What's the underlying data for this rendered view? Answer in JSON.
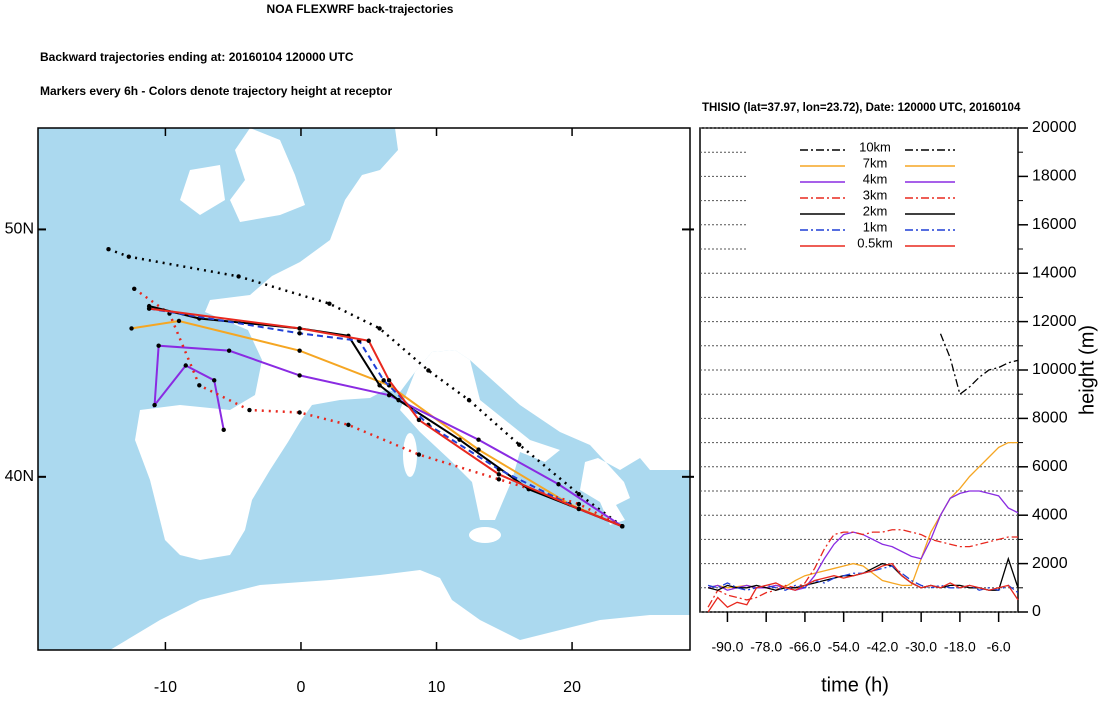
{
  "header": {
    "title": "NOA FLEXWRF back-trajectories",
    "line1": "Backward trajectories ending at: 20160104  120000 UTC",
    "line2": "Markers every 6h - Colors denote trajectory height at receptor"
  },
  "chart_data": [
    {
      "type": "map",
      "xlim": [
        -19.4,
        28.7
      ],
      "ylim": [
        33.0,
        54.1
      ],
      "xticks": [
        -10,
        0,
        10,
        20
      ],
      "yticks": [
        {
          "value": 40,
          "label": "40N"
        },
        {
          "value": 50,
          "label": "50N"
        }
      ],
      "series": [
        {
          "color": "#000000",
          "linestyle": "dotted",
          "x": [
            -14.2,
            -12.7,
            -4.6,
            2.1,
            5.8,
            9.4,
            12.4,
            16.1,
            20.5,
            23.7
          ],
          "values": [
            49.2,
            48.9,
            48.1,
            47.0,
            46.0,
            44.3,
            43.1,
            41.3,
            39.3,
            38.0
          ]
        },
        {
          "color": "#f5a623",
          "linestyle": "solid",
          "x": [
            -12.5,
            -9.0,
            -0.1,
            6.5,
            13.1,
            19.8,
            23.7
          ],
          "values": [
            46.0,
            46.3,
            45.1,
            43.7,
            41.1,
            38.9,
            38.0
          ]
        },
        {
          "color": "#8a2be2",
          "linestyle": "solid",
          "x": [
            -5.7,
            -6.4,
            -8.5,
            -10.8,
            -10.5,
            -5.3,
            -0.1,
            6.5,
            13.1,
            19.0,
            23.7
          ],
          "values": [
            41.9,
            43.9,
            44.5,
            42.9,
            45.3,
            45.1,
            44.1,
            43.3,
            41.5,
            39.7,
            38.0
          ]
        },
        {
          "color": "#e8281e",
          "linestyle": "dotted",
          "x": [
            -12.3,
            -9.7,
            -7.5,
            -3.8,
            -0.1,
            3.5,
            8.7,
            14.6,
            20.5,
            23.7
          ],
          "values": [
            47.6,
            46.6,
            43.7,
            42.7,
            42.6,
            42.1,
            40.9,
            39.9,
            38.9,
            38.0
          ]
        },
        {
          "color": "#000000",
          "linestyle": "solid",
          "x": [
            -11.2,
            -7.5,
            -0.1,
            3.5,
            5.8,
            7.2,
            11.7,
            16.8,
            20.5,
            23.7
          ],
          "values": [
            46.9,
            46.4,
            46.0,
            45.7,
            43.7,
            43.1,
            41.5,
            39.5,
            38.7,
            38.0
          ]
        },
        {
          "color": "#1f3fd6",
          "linestyle": "dashed",
          "x": [
            -11.2,
            -0.1,
            4.3,
            6.1,
            9.4,
            14.6,
            20.5,
            23.7
          ],
          "values": [
            46.8,
            45.8,
            45.5,
            43.9,
            42.1,
            40.3,
            38.7,
            38.0
          ]
        },
        {
          "color": "#e8281e",
          "linestyle": "solid",
          "x": [
            -11.2,
            -0.1,
            5.0,
            6.5,
            8.7,
            14.6,
            20.5,
            23.7
          ],
          "values": [
            46.8,
            46.0,
            45.5,
            43.9,
            42.3,
            40.1,
            38.7,
            38.0
          ]
        }
      ]
    },
    {
      "type": "line",
      "title": "THISIO (lat=37.97,  lon=23.72), Date: 120000 UTC, 20160104",
      "xlabel": "time (h)",
      "ylabel": "height (m)",
      "xlim": [
        -98.5,
        0
      ],
      "ylim": [
        0,
        20000
      ],
      "xticks": [
        {
          "value": -90,
          "label": "-90.0"
        },
        {
          "value": -78,
          "label": "-78.0"
        },
        {
          "value": -66,
          "label": "-66.0"
        },
        {
          "value": -54,
          "label": "-54.0"
        },
        {
          "value": -42,
          "label": "-42.0"
        },
        {
          "value": -30,
          "label": "-30.0"
        },
        {
          "value": -18,
          "label": "-18.0"
        },
        {
          "value": -6,
          "label": "-6.0"
        }
      ],
      "yticks": [
        0,
        2000,
        4000,
        6000,
        8000,
        10000,
        12000,
        14000,
        16000,
        18000,
        20000
      ],
      "yminorticks": [
        1000,
        3000,
        5000,
        7000,
        9000,
        11000,
        13000,
        15000,
        17000,
        19000
      ],
      "grid": true,
      "x": [
        -96,
        -93,
        -90,
        -87,
        -84,
        -81,
        -78,
        -75,
        -72,
        -69,
        -66,
        -63,
        -60,
        -57,
        -54,
        -51,
        -48,
        -45,
        -42,
        -39,
        -36,
        -33,
        -30,
        -27,
        -24,
        -21,
        -18,
        -15,
        -12,
        -9,
        -6,
        -3,
        0
      ],
      "series": [
        {
          "name": "10km",
          "color": "#000000",
          "linestyle": "dashdot",
          "values": [
            null,
            null,
            null,
            null,
            null,
            null,
            null,
            null,
            null,
            null,
            null,
            null,
            null,
            null,
            null,
            null,
            null,
            null,
            null,
            null,
            null,
            null,
            null,
            null,
            11500,
            10500,
            9000,
            9300,
            9700,
            10000,
            10100,
            10300,
            10400
          ]
        },
        {
          "name": "7km",
          "color": "#f5a623",
          "linestyle": "solid",
          "values": [
            1000,
            1100,
            1000,
            1050,
            1100,
            1000,
            1000,
            1100,
            1050,
            1300,
            1500,
            1600,
            1700,
            1800,
            1900,
            2000,
            1900,
            1600,
            1300,
            1200,
            1100,
            1100,
            2200,
            3300,
            4000,
            4700,
            5100,
            5600,
            6000,
            6400,
            6800,
            7000,
            7000
          ]
        },
        {
          "name": "4km",
          "color": "#8a2be2",
          "linestyle": "solid",
          "values": [
            1000,
            1100,
            900,
            1000,
            1100,
            1000,
            1000,
            1100,
            1000,
            900,
            1000,
            1500,
            2200,
            2800,
            3200,
            3300,
            3200,
            3000,
            2800,
            2700,
            2500,
            2300,
            2200,
            3000,
            4000,
            4700,
            4900,
            5000,
            5000,
            4900,
            4800,
            4300,
            4100
          ]
        },
        {
          "name": "3km",
          "color": "#e8281e",
          "linestyle": "dashdot",
          "values": [
            200,
            900,
            700,
            600,
            500,
            600,
            800,
            900,
            1100,
            1000,
            1200,
            1800,
            2600,
            3200,
            3300,
            3300,
            3200,
            3300,
            3300,
            3400,
            3400,
            3300,
            3200,
            3000,
            2900,
            2800,
            2700,
            2700,
            2800,
            2900,
            3000,
            3100,
            3100
          ]
        },
        {
          "name": "2km",
          "color": "#000000",
          "linestyle": "solid",
          "values": [
            1000,
            900,
            1100,
            1000,
            1000,
            1100,
            1000,
            900,
            1000,
            1000,
            1100,
            1200,
            1300,
            1400,
            1500,
            1500,
            1600,
            1800,
            2000,
            1900,
            1500,
            1200,
            1000,
            1100,
            1000,
            1100,
            1100,
            1000,
            1000,
            900,
            900,
            2200,
            1000
          ]
        },
        {
          "name": "1km",
          "color": "#1f3fd6",
          "linestyle": "dashdot",
          "values": [
            1100,
            1000,
            1200,
            1000,
            900,
            1000,
            1100,
            1000,
            900,
            1100,
            1000,
            1300,
            1200,
            1400,
            1500,
            1600,
            1600,
            1700,
            1800,
            1900,
            1600,
            1300,
            1100,
            1000,
            1100,
            1000,
            1000,
            1100,
            900,
            1000,
            900,
            1100,
            800
          ]
        },
        {
          "name": "0.5km",
          "color": "#e8281e",
          "linestyle": "solid",
          "values": [
            0,
            600,
            200,
            400,
            300,
            1000,
            1100,
            1200,
            1000,
            900,
            1100,
            1300,
            1400,
            1500,
            1400,
            1500,
            1600,
            1700,
            1900,
            2000,
            1500,
            1200,
            1000,
            1100,
            1000,
            1200,
            1000,
            1100,
            1000,
            900,
            1000,
            1100,
            500
          ]
        }
      ]
    }
  ]
}
